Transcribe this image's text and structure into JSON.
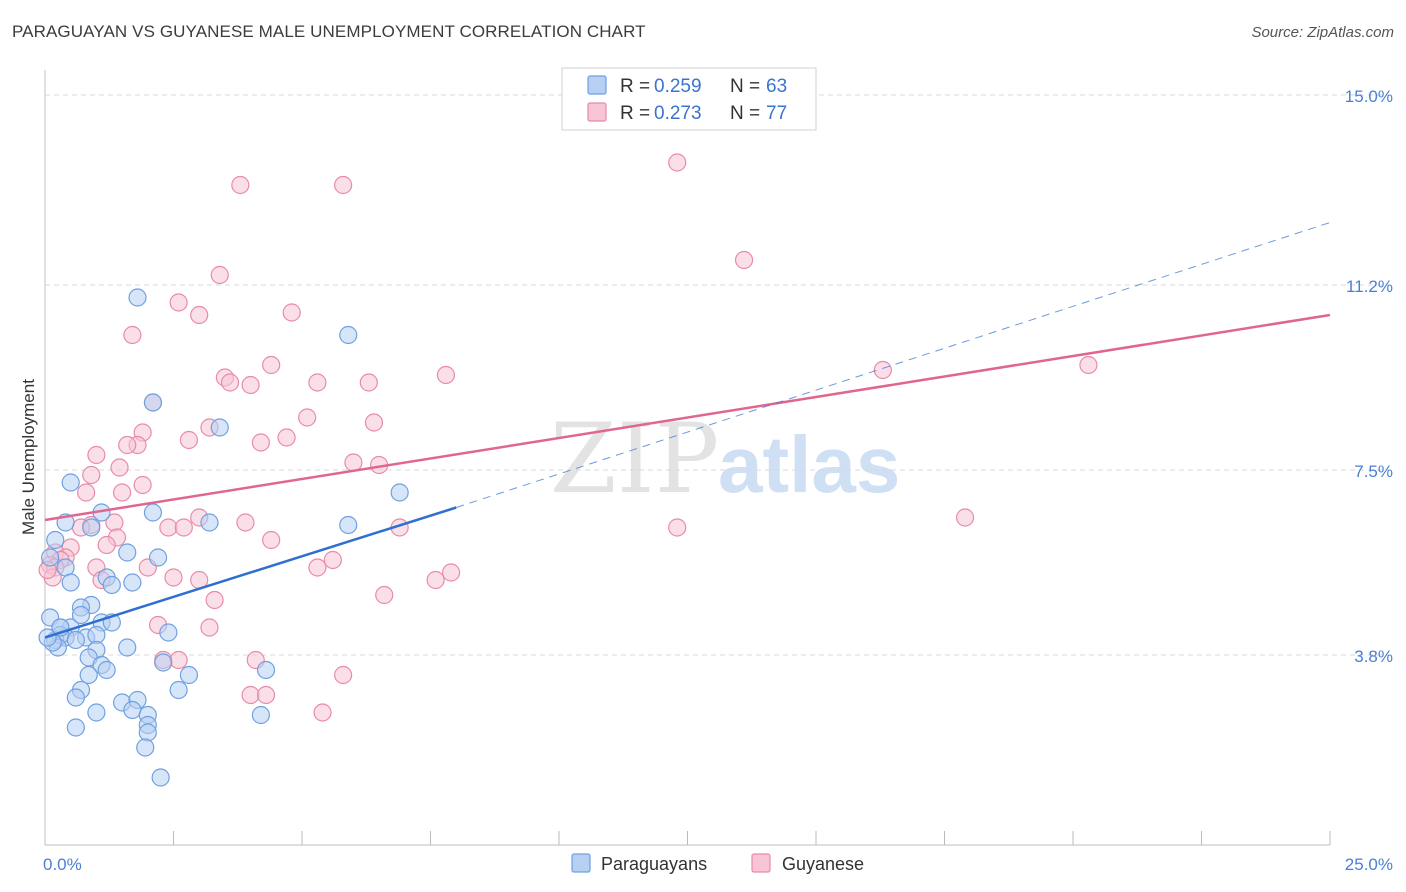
{
  "title": "PARAGUAYAN VS GUYANESE MALE UNEMPLOYMENT CORRELATION CHART",
  "source": "Source: ZipAtlas.com",
  "watermark": {
    "zip": "ZIP",
    "atlas": "atlas"
  },
  "colors": {
    "blue": "#6fa0e0",
    "blue_fill": "#b7cff2",
    "blue_line": "#2f6fd0",
    "pink": "#e88ba8",
    "pink_fill": "#f7c5d5",
    "pink_line": "#e0668f",
    "grid": "#d8d8d8",
    "tick_label": "#4a7fd4"
  },
  "legend": {
    "rows": [
      {
        "r_label": "R = ",
        "r_value": "0.259",
        "n_label": "N = ",
        "n_value": "63"
      },
      {
        "r_label": "R = ",
        "r_value": "0.273",
        "n_label": "N = ",
        "n_value": "77"
      }
    ]
  },
  "bottom_legend": [
    "Paraguayans",
    "Guyanese"
  ],
  "chart_data": {
    "type": "scatter",
    "title": "PARAGUAYAN VS GUYANESE MALE UNEMPLOYMENT CORRELATION CHART",
    "xlabel": "",
    "ylabel": "Male Unemployment",
    "xlim": [
      0,
      25
    ],
    "ylim": [
      0,
      15.5
    ],
    "x_tick_labels": [
      {
        "v": 0,
        "label": "0.0%"
      },
      {
        "v": 25,
        "label": "25.0%"
      }
    ],
    "y_tick_labels": [
      {
        "v": 3.8,
        "label": "3.8%"
      },
      {
        "v": 7.5,
        "label": "7.5%"
      },
      {
        "v": 11.2,
        "label": "11.2%"
      },
      {
        "v": 15.0,
        "label": "15.0%"
      }
    ],
    "x_minor_ticks": [
      2.5,
      5,
      7.5,
      10,
      12.5,
      15,
      17.5,
      20,
      22.5
    ],
    "series": [
      {
        "name": "Paraguayans",
        "r": 0.259,
        "n": 63,
        "trend": {
          "x0": 0,
          "y0": 4.15,
          "x1": 8.0,
          "y1": 6.75
        },
        "trend_dashed": {
          "x0": 8.0,
          "y0": 6.75,
          "x1": 25.0,
          "y1": 12.45
        },
        "points": [
          [
            1.8,
            10.95
          ],
          [
            5.9,
            10.2
          ],
          [
            2.1,
            8.85
          ],
          [
            3.4,
            8.35
          ],
          [
            0.5,
            7.25
          ],
          [
            6.9,
            7.05
          ],
          [
            1.1,
            6.65
          ],
          [
            0.4,
            6.45
          ],
          [
            2.1,
            6.65
          ],
          [
            3.2,
            6.45
          ],
          [
            5.9,
            6.4
          ],
          [
            0.2,
            6.1
          ],
          [
            1.6,
            5.85
          ],
          [
            0.1,
            5.75
          ],
          [
            0.4,
            5.55
          ],
          [
            0.9,
            6.35
          ],
          [
            2.2,
            5.75
          ],
          [
            1.2,
            5.35
          ],
          [
            0.5,
            5.25
          ],
          [
            1.3,
            5.2
          ],
          [
            1.7,
            5.25
          ],
          [
            0.9,
            4.8
          ],
          [
            0.7,
            4.75
          ],
          [
            0.1,
            4.55
          ],
          [
            0.5,
            4.35
          ],
          [
            1.1,
            4.45
          ],
          [
            0.7,
            4.6
          ],
          [
            0.3,
            4.35
          ],
          [
            0.4,
            4.15
          ],
          [
            0.2,
            4.1
          ],
          [
            0.3,
            4.2
          ],
          [
            0.8,
            4.15
          ],
          [
            1.0,
            4.2
          ],
          [
            2.4,
            4.25
          ],
          [
            0.25,
            3.95
          ],
          [
            1.6,
            3.95
          ],
          [
            1.0,
            3.9
          ],
          [
            0.85,
            3.75
          ],
          [
            1.1,
            3.6
          ],
          [
            1.2,
            3.5
          ],
          [
            0.85,
            3.4
          ],
          [
            2.3,
            3.65
          ],
          [
            4.3,
            3.5
          ],
          [
            2.8,
            3.4
          ],
          [
            0.7,
            3.1
          ],
          [
            0.6,
            2.95
          ],
          [
            1.5,
            2.85
          ],
          [
            1.8,
            2.9
          ],
          [
            1.7,
            2.7
          ],
          [
            2.0,
            2.6
          ],
          [
            2.6,
            3.1
          ],
          [
            1.0,
            2.65
          ],
          [
            4.2,
            2.6
          ],
          [
            2.0,
            2.4
          ],
          [
            0.6,
            2.35
          ],
          [
            2.0,
            2.25
          ],
          [
            1.95,
            1.95
          ],
          [
            2.25,
            1.35
          ],
          [
            0.15,
            4.05
          ],
          [
            0.3,
            4.35
          ],
          [
            1.3,
            4.45
          ],
          [
            0.6,
            4.1
          ],
          [
            0.05,
            4.15
          ]
        ]
      },
      {
        "name": "Guyanese",
        "r": 0.273,
        "n": 77,
        "trend": {
          "x0": 0,
          "y0": 6.5,
          "x1": 25.0,
          "y1": 10.6
        },
        "points": [
          [
            12.3,
            13.65
          ],
          [
            3.8,
            13.2
          ],
          [
            5.8,
            13.2
          ],
          [
            13.6,
            11.7
          ],
          [
            3.4,
            11.4
          ],
          [
            2.6,
            10.85
          ],
          [
            3.0,
            10.6
          ],
          [
            4.8,
            10.65
          ],
          [
            1.7,
            10.2
          ],
          [
            4.4,
            9.6
          ],
          [
            3.5,
            9.35
          ],
          [
            3.6,
            9.25
          ],
          [
            4.0,
            9.2
          ],
          [
            5.3,
            9.25
          ],
          [
            6.3,
            9.25
          ],
          [
            7.8,
            9.4
          ],
          [
            16.3,
            9.5
          ],
          [
            20.3,
            9.6
          ],
          [
            2.1,
            8.85
          ],
          [
            5.1,
            8.55
          ],
          [
            6.4,
            8.45
          ],
          [
            3.2,
            8.35
          ],
          [
            1.9,
            8.25
          ],
          [
            2.8,
            8.1
          ],
          [
            4.7,
            8.15
          ],
          [
            4.2,
            8.05
          ],
          [
            1.8,
            8.0
          ],
          [
            1.6,
            8.0
          ],
          [
            1.0,
            7.8
          ],
          [
            6.0,
            7.65
          ],
          [
            6.5,
            7.6
          ],
          [
            1.45,
            7.55
          ],
          [
            0.9,
            7.4
          ],
          [
            1.9,
            7.2
          ],
          [
            1.5,
            7.05
          ],
          [
            0.8,
            7.05
          ],
          [
            3.0,
            6.55
          ],
          [
            0.9,
            6.4
          ],
          [
            1.35,
            6.45
          ],
          [
            3.9,
            6.45
          ],
          [
            2.4,
            6.35
          ],
          [
            2.7,
            6.35
          ],
          [
            0.7,
            6.35
          ],
          [
            12.3,
            6.35
          ],
          [
            6.9,
            6.35
          ],
          [
            17.9,
            6.55
          ],
          [
            1.4,
            6.15
          ],
          [
            4.4,
            6.1
          ],
          [
            1.2,
            6.0
          ],
          [
            0.5,
            5.95
          ],
          [
            0.2,
            5.85
          ],
          [
            0.4,
            5.75
          ],
          [
            0.3,
            5.7
          ],
          [
            5.6,
            5.7
          ],
          [
            0.1,
            5.6
          ],
          [
            0.2,
            5.55
          ],
          [
            1.0,
            5.55
          ],
          [
            2.0,
            5.55
          ],
          [
            5.3,
            5.55
          ],
          [
            7.9,
            5.45
          ],
          [
            0.15,
            5.35
          ],
          [
            2.5,
            5.35
          ],
          [
            3.0,
            5.3
          ],
          [
            7.6,
            5.3
          ],
          [
            1.1,
            5.3
          ],
          [
            6.6,
            5.0
          ],
          [
            3.3,
            4.9
          ],
          [
            2.2,
            4.4
          ],
          [
            3.2,
            4.35
          ],
          [
            2.3,
            3.7
          ],
          [
            2.6,
            3.7
          ],
          [
            4.1,
            3.7
          ],
          [
            5.8,
            3.4
          ],
          [
            4.0,
            3.0
          ],
          [
            4.3,
            3.0
          ],
          [
            5.4,
            2.65
          ],
          [
            0.05,
            5.5
          ]
        ]
      }
    ]
  }
}
